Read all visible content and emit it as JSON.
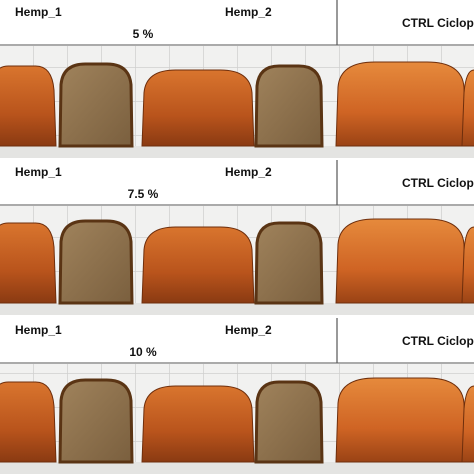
{
  "panels": [
    {
      "left_label": "Hemp_1",
      "level": "5 %",
      "right_label": "Hemp_2",
      "control_label": "CTRL Ciclop"
    },
    {
      "left_label": "Hemp_1",
      "level": "7.5 %",
      "right_label": "Hemp_2",
      "control_label": "CTRL Ciclop"
    },
    {
      "left_label": "Hemp_1",
      "level": "10 %",
      "right_label": "Hemp_2",
      "control_label": "CTRL Ciclop"
    }
  ]
}
